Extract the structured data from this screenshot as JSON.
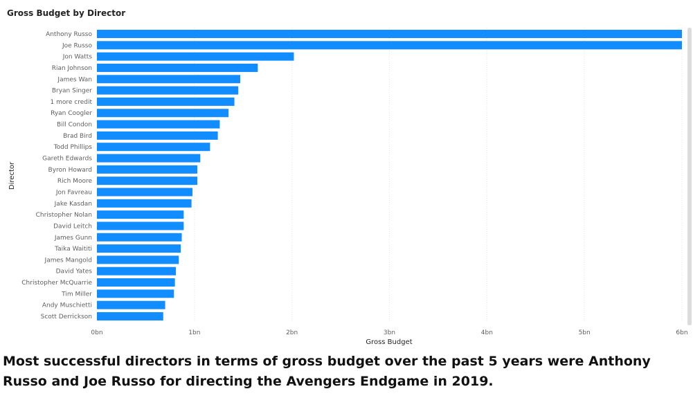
{
  "chart_data": {
    "type": "bar",
    "orientation": "horizontal",
    "title": "Gross Budget by Director",
    "xlabel": "Gross Budget",
    "ylabel": "Director",
    "xlim": [
      0,
      6
    ],
    "x_tick_labels": [
      "0bn",
      "1bn",
      "2bn",
      "3bn",
      "4bn",
      "5bn",
      "6bn"
    ],
    "grid": true,
    "bar_color": "#118dff",
    "categories": [
      "Anthony Russo",
      "Joe Russo",
      "Jon Watts",
      "Rian Johnson",
      "James Wan",
      "Bryan Singer",
      "1 more credit",
      "Ryan Coogler",
      "Bill Condon",
      "Brad Bird",
      "Todd Phillips",
      "Gareth Edwards",
      "Byron Howard",
      "Rich Moore",
      "Jon Favreau",
      "Jake Kasdan",
      "Christopher Nolan",
      "David Leitch",
      "James Gunn",
      "Taika Waititi",
      "James Mangold",
      "David Yates",
      "Christopher McQuarrie",
      "Tim Miller",
      "Andy Muschietti",
      "Scott Derrickson"
    ],
    "values": [
      6.0,
      6.0,
      2.02,
      1.65,
      1.47,
      1.45,
      1.41,
      1.35,
      1.26,
      1.24,
      1.16,
      1.06,
      1.03,
      1.03,
      0.98,
      0.97,
      0.89,
      0.89,
      0.87,
      0.86,
      0.84,
      0.81,
      0.8,
      0.79,
      0.7,
      0.68
    ]
  },
  "caption": "Most successful directors in terms of gross budget over the past 5 years were Anthony Russo and Joe Russo for directing the Avengers Endgame in 2019."
}
